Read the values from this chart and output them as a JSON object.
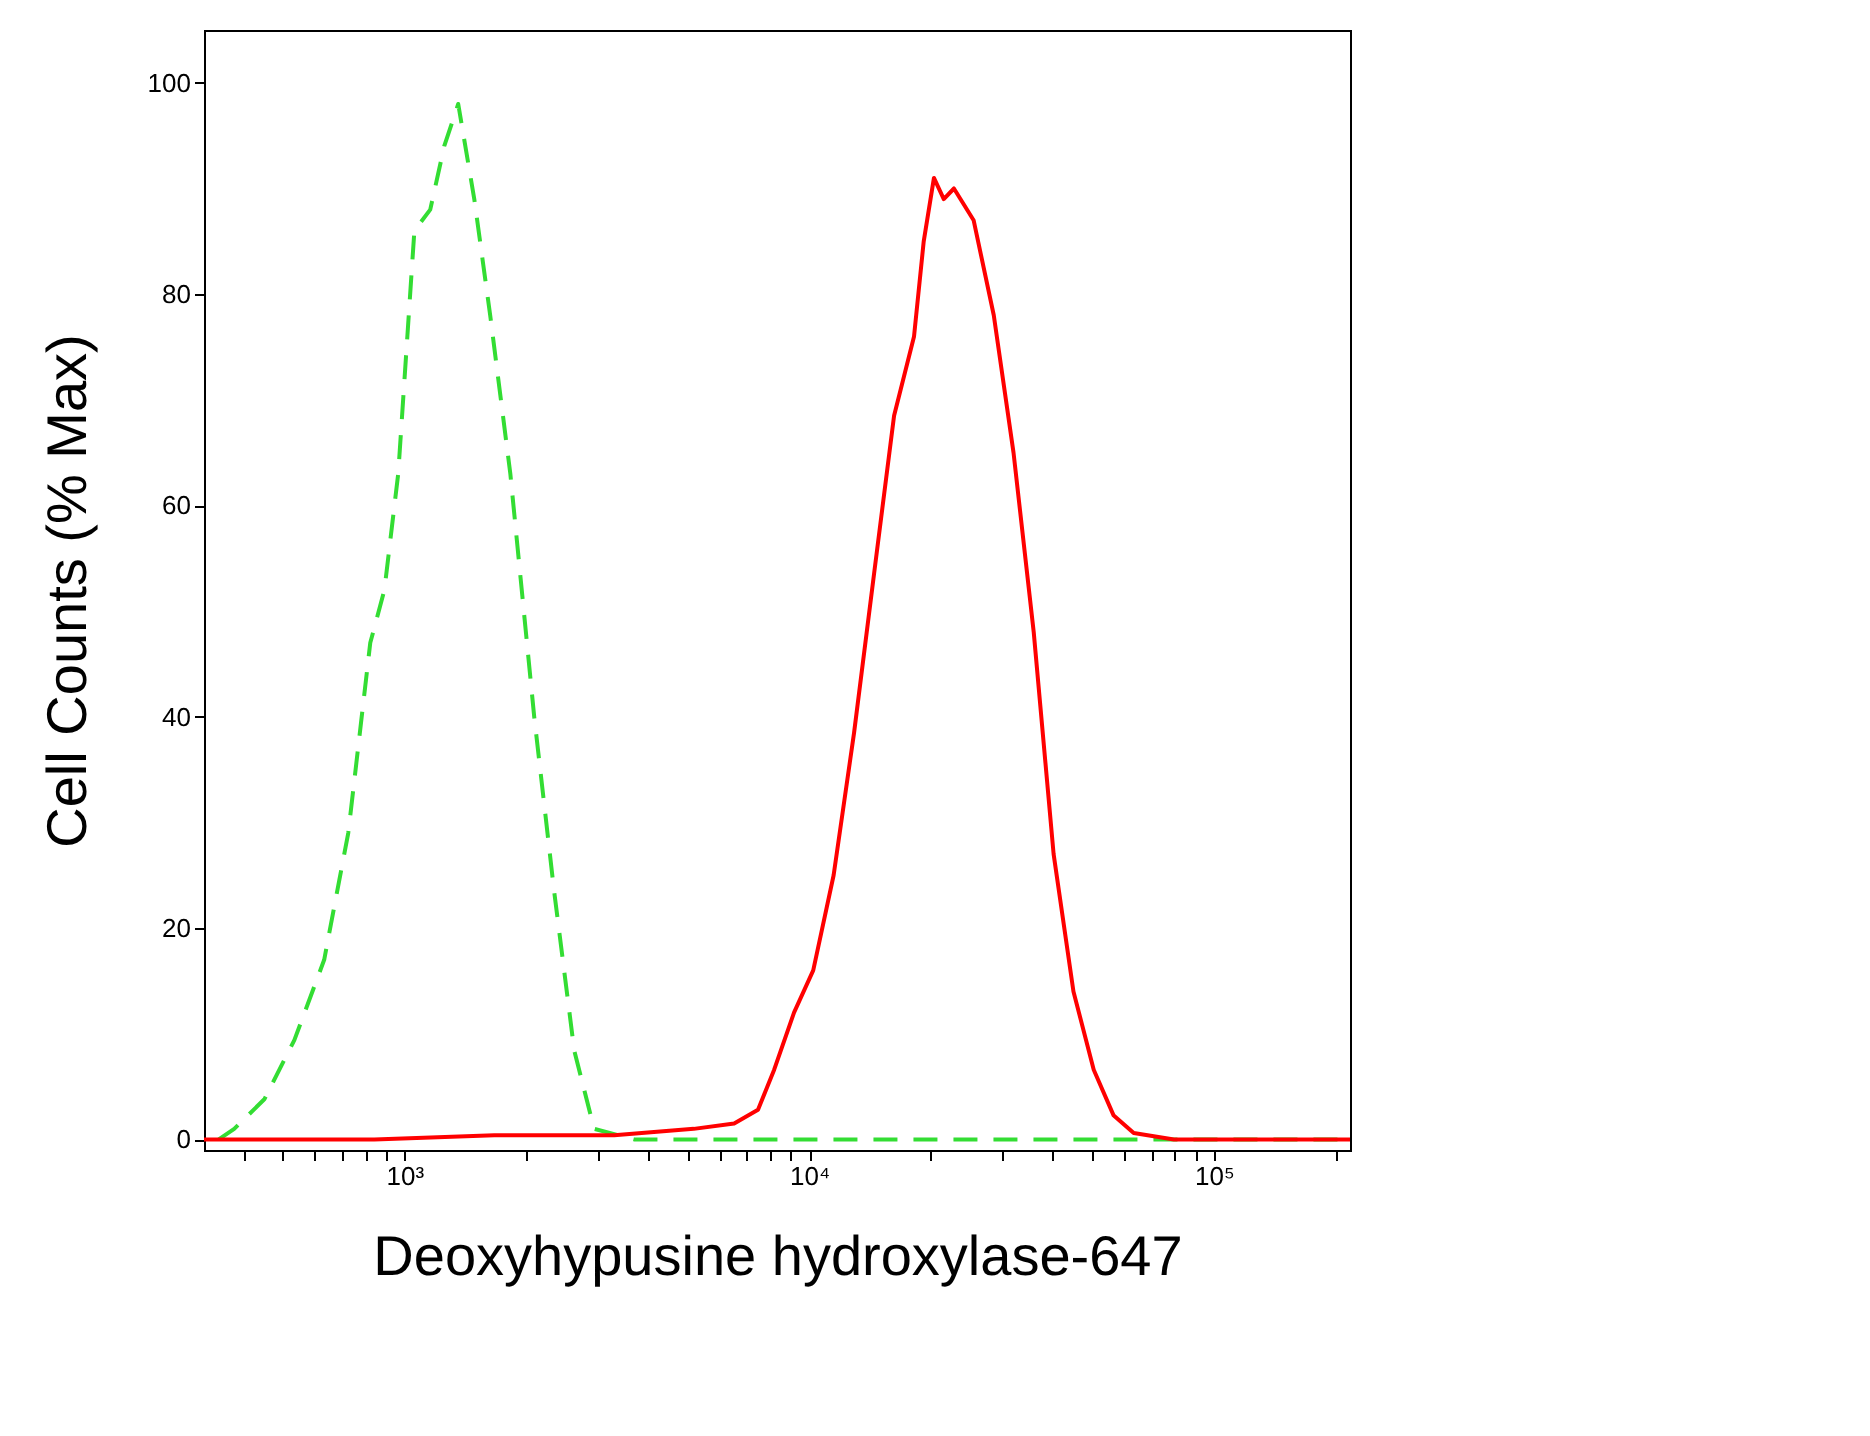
{
  "chart_data": {
    "type": "line",
    "xlabel": "Deoxyhypusine hydroxylase-647",
    "ylabel": "Cell Counts (% Max)",
    "log": "x",
    "grid": false,
    "marker": "none",
    "xlim": [
      320,
      217000
    ],
    "ylim": [
      -1,
      105
    ],
    "xticks": [
      {
        "value": 400,
        "label": null
      },
      {
        "value": 500,
        "label": null
      },
      {
        "value": 600,
        "label": null
      },
      {
        "value": 700,
        "label": null
      },
      {
        "value": 800,
        "label": null
      },
      {
        "value": 900,
        "label": null
      },
      {
        "value": 1000,
        "label": "10³"
      },
      {
        "value": 2000,
        "label": null
      },
      {
        "value": 3000,
        "label": null
      },
      {
        "value": 4000,
        "label": null
      },
      {
        "value": 5000,
        "label": null
      },
      {
        "value": 6000,
        "label": null
      },
      {
        "value": 7000,
        "label": null
      },
      {
        "value": 8000,
        "label": null
      },
      {
        "value": 9000,
        "label": null
      },
      {
        "value": 10000,
        "label": "10⁴"
      },
      {
        "value": 20000,
        "label": null
      },
      {
        "value": 30000,
        "label": null
      },
      {
        "value": 40000,
        "label": null
      },
      {
        "value": 50000,
        "label": null
      },
      {
        "value": 60000,
        "label": null
      },
      {
        "value": 70000,
        "label": null
      },
      {
        "value": 80000,
        "label": null
      },
      {
        "value": 90000,
        "label": null
      },
      {
        "value": 100000,
        "label": "10⁵"
      },
      {
        "value": 200000,
        "label": null
      }
    ],
    "yticks": [
      0,
      20,
      40,
      60,
      80,
      100
    ],
    "series": [
      {
        "color": "#33dd33",
        "line_style": "dashed",
        "x": [
          348,
          380,
          451,
          535,
          634,
          727,
          824,
          893,
          966,
          1059,
          1159,
          1255,
          1359,
          1489,
          1630,
          1828,
          2094,
          2345,
          2630,
          2944,
          3698,
          8200,
          25500,
          79700,
          217000
        ],
        "values": [
          0,
          1,
          3.8,
          9.4,
          17,
          29,
          47,
          52,
          63,
          86,
          88,
          94,
          98,
          89,
          78,
          63,
          40,
          23.5,
          8.4,
          1,
          0,
          0,
          0,
          0,
          0
        ]
      },
      {
        "color": "#ff0000",
        "line_style": "solid",
        "x": [
          320,
          843,
          1668,
          3300,
          5190,
          6530,
          7480,
          8200,
          9180,
          10240,
          11500,
          12920,
          14470,
          16220,
          18170,
          19200,
          20350,
          21520,
          22800,
          25500,
          28600,
          32000,
          35900,
          40200,
          45000,
          50500,
          56500,
          63400,
          79700,
          217000
        ],
        "values": [
          0,
          0,
          0.4,
          0.4,
          1,
          1.5,
          2.8,
          6.6,
          12,
          16,
          25,
          38.5,
          53.5,
          68.5,
          76,
          85,
          91,
          89,
          90,
          87,
          78,
          65,
          48,
          27,
          14,
          6.6,
          2.3,
          0.6,
          0,
          0
        ]
      }
    ]
  }
}
